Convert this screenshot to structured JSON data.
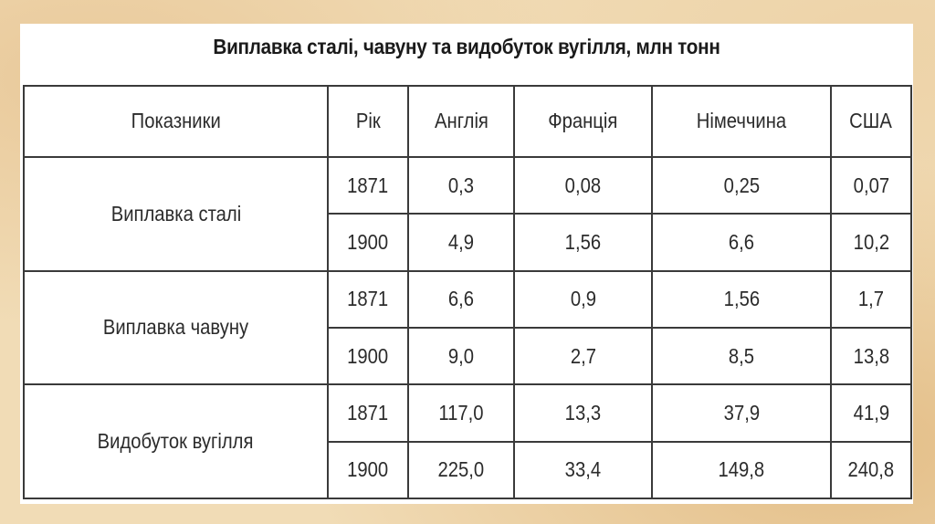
{
  "title": "Виплавка сталі, чавуну та видобуток вугілля, млн тонн",
  "table": {
    "headers": [
      "Показники",
      "Рік",
      "Англія",
      "Франція",
      "Німеччина",
      "США"
    ],
    "groups": [
      {
        "indicator": "Виплавка сталі",
        "rows": [
          {
            "year": "1871",
            "values": [
              "0,3",
              "0,08",
              "0,25",
              "0,07"
            ]
          },
          {
            "year": "1900",
            "values": [
              "4,9",
              "1,56",
              "6,6",
              "10,2"
            ]
          }
        ]
      },
      {
        "indicator": "Виплавка чавуну",
        "rows": [
          {
            "year": "1871",
            "values": [
              "6,6",
              "0,9",
              "1,56",
              "1,7"
            ]
          },
          {
            "year": "1900",
            "values": [
              "9,0",
              "2,7",
              "8,5",
              "13,8"
            ]
          }
        ]
      },
      {
        "indicator": "Видобуток вугілля",
        "rows": [
          {
            "year": "1871",
            "values": [
              "117,0",
              "13,3",
              "37,9",
              "41,9"
            ]
          },
          {
            "year": "1900",
            "values": [
              "225,0",
              "33,4",
              "149,8",
              "240,8"
            ]
          }
        ]
      }
    ]
  }
}
